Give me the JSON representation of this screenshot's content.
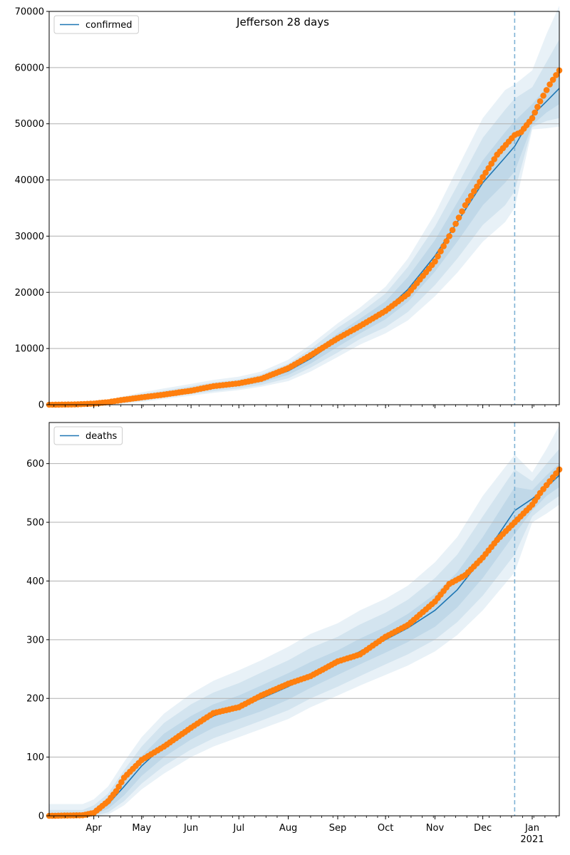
{
  "figure_title": "Jefferson 28 days",
  "colors": {
    "model_line": "#1f77b4",
    "band": "#1f77b4",
    "observed": "#ff7f0e",
    "grid": "#b0b0b0",
    "cutoff_line": "#7fb3d5"
  },
  "chart_data": [
    {
      "type": "line",
      "panel": "top",
      "title": "Jefferson 28 days",
      "xlabel": "",
      "ylabel": "",
      "x_type": "date",
      "xlim": [
        "2020-03-04",
        "2021-01-18"
      ],
      "ylim": [
        0,
        70000
      ],
      "yticks": [
        0,
        10000,
        20000,
        30000,
        40000,
        50000,
        60000,
        70000
      ],
      "grid": "y",
      "legend": {
        "placement": "top-left",
        "entries": [
          "confirmed"
        ]
      },
      "cutoff_date": "2020-12-21",
      "model": {
        "name": "confirmed",
        "x": [
          "2020-03-04",
          "2020-03-20",
          "2020-04-01",
          "2020-04-15",
          "2020-05-01",
          "2020-05-15",
          "2020-06-01",
          "2020-06-15",
          "2020-07-01",
          "2020-07-15",
          "2020-08-01",
          "2020-08-15",
          "2020-09-01",
          "2020-09-15",
          "2020-10-01",
          "2020-10-15",
          "2020-11-01",
          "2020-11-15",
          "2020-12-01",
          "2020-12-15",
          "2020-12-21",
          "2021-01-01",
          "2021-01-10",
          "2021-01-18"
        ],
        "values": [
          0,
          50,
          200,
          600,
          1300,
          1900,
          2600,
          3200,
          3700,
          4400,
          6000,
          8200,
          11500,
          14000,
          16800,
          20500,
          26500,
          32500,
          39500,
          44000,
          46000,
          51500,
          54000,
          56300
        ]
      },
      "bands": [
        {
          "lower": [
            0,
            0,
            100,
            400,
            1000,
            1600,
            2200,
            2800,
            3300,
            3900,
            5300,
            7300,
            10300,
            12700,
            15200,
            18300,
            23700,
            29000,
            35500,
            39500,
            41500,
            49800,
            52000,
            53500
          ],
          "upper": [
            0,
            100,
            300,
            800,
            1600,
            2200,
            3000,
            3600,
            4100,
            4900,
            6700,
            9100,
            12700,
            15300,
            18400,
            22700,
            29300,
            36000,
            43500,
            48500,
            50500,
            53500,
            56500,
            59500
          ]
        },
        {
          "lower": [
            0,
            0,
            0,
            200,
            700,
            1300,
            1900,
            2400,
            2900,
            3500,
            4700,
            6600,
            9300,
            11700,
            13800,
            16500,
            21300,
            26000,
            32000,
            35500,
            38000,
            49400,
            50500,
            51000
          ],
          "upper": [
            100,
            200,
            400,
            1000,
            1900,
            2500,
            3300,
            4000,
            4500,
            5400,
            7300,
            9900,
            13700,
            16300,
            19800,
            24500,
            31700,
            39000,
            47500,
            52500,
            54500,
            56500,
            61000,
            65000
          ]
        },
        {
          "lower": [
            0,
            0,
            0,
            100,
            500,
            1000,
            1600,
            2100,
            2600,
            3200,
            4200,
            5900,
            8500,
            10700,
            12700,
            15000,
            19300,
            23500,
            29000,
            32500,
            35000,
            49000,
            49200,
            49500
          ],
          "upper": [
            200,
            300,
            500,
            1200,
            2200,
            2900,
            3700,
            4400,
            5000,
            5900,
            8000,
            10700,
            14500,
            17300,
            21000,
            26000,
            34000,
            42000,
            51000,
            56000,
            57000,
            59500,
            66000,
            71000
          ]
        }
      ],
      "observed": {
        "x": [
          "2020-03-04",
          "2020-03-20",
          "2020-04-01",
          "2020-04-10",
          "2020-04-20",
          "2020-05-01",
          "2020-05-15",
          "2020-06-01",
          "2020-06-15",
          "2020-07-01",
          "2020-07-15",
          "2020-08-01",
          "2020-08-15",
          "2020-09-01",
          "2020-09-15",
          "2020-10-01",
          "2020-10-15",
          "2020-11-01",
          "2020-11-10",
          "2020-11-20",
          "2020-12-01",
          "2020-12-10",
          "2020-12-21",
          "2020-12-25",
          "2021-01-01",
          "2021-01-06",
          "2021-01-12",
          "2021-01-18"
        ],
        "values": [
          0,
          50,
          200,
          450,
          900,
          1300,
          1800,
          2500,
          3300,
          3800,
          4600,
          6500,
          8800,
          11800,
          14000,
          16700,
          19700,
          25500,
          30000,
          35500,
          40500,
          44500,
          48000,
          48500,
          51000,
          54000,
          57000,
          59500
        ]
      }
    },
    {
      "type": "line",
      "panel": "bottom",
      "title": "",
      "xlabel": "",
      "ylabel": "",
      "x_type": "date",
      "xlim": [
        "2020-03-04",
        "2021-01-18"
      ],
      "ylim": [
        0,
        670
      ],
      "yticks": [
        0,
        100,
        200,
        300,
        400,
        500,
        600
      ],
      "xticks": [
        "2020-04-01",
        "2020-05-01",
        "2020-06-01",
        "2020-07-01",
        "2020-08-01",
        "2020-09-01",
        "2020-10-01",
        "2020-11-01",
        "2020-12-01",
        "2021-01-01"
      ],
      "xtick_labels": [
        "Apr",
        "May",
        "Jun",
        "Jul",
        "Aug",
        "Sep",
        "Oct",
        "Nov",
        "Dec",
        "Jan\n2021"
      ],
      "grid": "y",
      "legend": {
        "placement": "top-left",
        "entries": [
          "deaths"
        ]
      },
      "cutoff_date": "2020-12-21",
      "model": {
        "name": "deaths",
        "x": [
          "2020-03-04",
          "2020-03-25",
          "2020-04-01",
          "2020-04-10",
          "2020-04-20",
          "2020-05-01",
          "2020-05-15",
          "2020-06-01",
          "2020-06-15",
          "2020-07-01",
          "2020-07-15",
          "2020-08-01",
          "2020-08-15",
          "2020-09-01",
          "2020-09-15",
          "2020-10-01",
          "2020-10-15",
          "2020-11-01",
          "2020-11-15",
          "2020-12-01",
          "2020-12-21",
          "2021-01-01",
          "2021-01-10",
          "2021-01-18"
        ],
        "values": [
          0,
          1,
          5,
          20,
          50,
          85,
          120,
          150,
          170,
          185,
          200,
          220,
          240,
          260,
          280,
          300,
          320,
          350,
          385,
          440,
          520,
          540,
          560,
          580
        ]
      },
      "bands": [
        {
          "lower": [
            0,
            0,
            2,
            12,
            35,
            68,
            100,
            130,
            150,
            165,
            178,
            198,
            218,
            240,
            258,
            278,
            296,
            322,
            355,
            405,
            480,
            520,
            545,
            560
          ],
          "upper": [
            3,
            3,
            10,
            28,
            63,
            102,
            140,
            170,
            190,
            205,
            222,
            243,
            262,
            282,
            302,
            322,
            344,
            378,
            415,
            475,
            560,
            555,
            580,
            600
          ]
        },
        {
          "lower": [
            0,
            0,
            0,
            6,
            25,
            55,
            85,
            113,
            132,
            148,
            162,
            180,
            200,
            220,
            238,
            258,
            275,
            300,
            330,
            375,
            445,
            510,
            530,
            545
          ],
          "upper": [
            10,
            10,
            18,
            38,
            78,
            118,
            158,
            190,
            210,
            226,
            244,
            265,
            286,
            305,
            326,
            346,
            368,
            405,
            445,
            510,
            590,
            570,
            600,
            625
          ]
        },
        {
          "lower": [
            0,
            0,
            0,
            2,
            18,
            45,
            72,
            100,
            118,
            134,
            148,
            165,
            185,
            205,
            222,
            240,
            256,
            280,
            308,
            350,
            415,
            500,
            515,
            530
          ],
          "upper": [
            20,
            20,
            28,
            50,
            92,
            134,
            174,
            208,
            230,
            248,
            265,
            288,
            310,
            328,
            350,
            370,
            392,
            432,
            475,
            545,
            615,
            585,
            625,
            665
          ]
        }
      ],
      "observed": {
        "x": [
          "2020-03-04",
          "2020-03-25",
          "2020-04-01",
          "2020-04-10",
          "2020-04-15",
          "2020-04-20",
          "2020-05-01",
          "2020-05-15",
          "2020-06-01",
          "2020-06-15",
          "2020-07-01",
          "2020-07-15",
          "2020-08-01",
          "2020-08-15",
          "2020-09-01",
          "2020-09-15",
          "2020-10-01",
          "2020-10-15",
          "2020-11-01",
          "2020-11-10",
          "2020-11-20",
          "2020-12-01",
          "2020-12-10",
          "2020-12-21",
          "2021-01-01",
          "2021-01-06",
          "2021-01-12",
          "2021-01-18"
        ],
        "values": [
          0,
          1,
          5,
          25,
          42,
          65,
          95,
          118,
          150,
          175,
          185,
          205,
          225,
          238,
          263,
          275,
          305,
          325,
          365,
          395,
          410,
          440,
          470,
          500,
          530,
          550,
          570,
          590
        ]
      }
    }
  ]
}
